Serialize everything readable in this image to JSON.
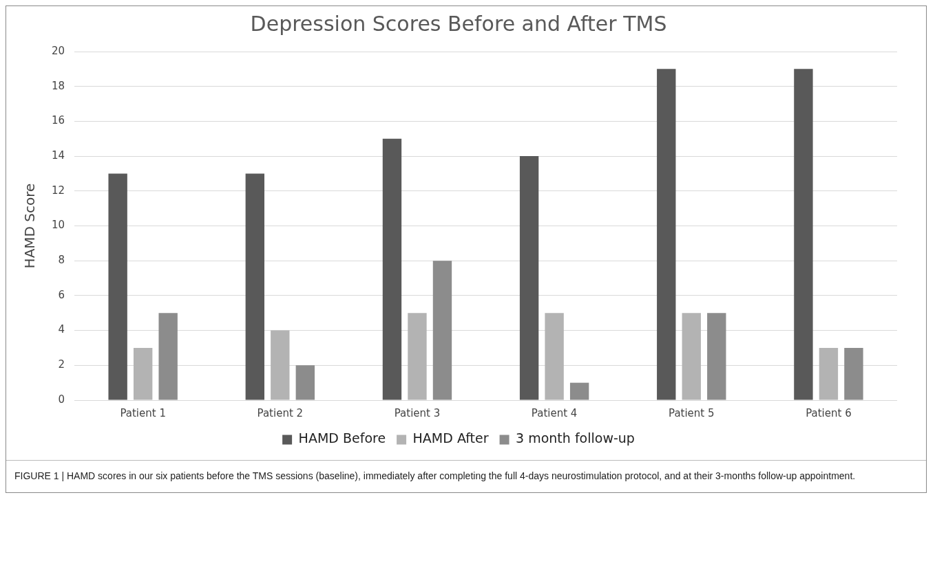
{
  "chart_data": {
    "type": "bar",
    "title": "Depression Scores Before and After TMS",
    "ylabel": "HAMD Score",
    "categories": [
      "Patient 1",
      "Patient 2",
      "Patient 3",
      "Patient 4",
      "Patient 5",
      "Patient 6"
    ],
    "series": [
      {
        "name": "HAMD Before",
        "color": "#595959",
        "values": [
          13,
          13,
          15,
          14,
          19,
          19
        ]
      },
      {
        "name": "HAMD After",
        "color": "#b3b3b3",
        "values": [
          3,
          4,
          5,
          5,
          5,
          3
        ]
      },
      {
        "name": "3 month follow-up",
        "color": "#8c8c8c",
        "values": [
          5,
          2,
          8,
          1,
          5,
          3
        ]
      }
    ],
    "ylim": [
      0,
      20
    ],
    "yticks": [
      0,
      2,
      4,
      6,
      8,
      10,
      12,
      14,
      16,
      18,
      20
    ],
    "grid": "y",
    "legend": "bottom",
    "annotations": [
      "FIGURE 1 | HAMD scores in our six patients before the TMS sessions (baseline), immediately after completing the full 4-days neurostimulation protocol, and at their 3-months follow-up appointment."
    ]
  }
}
